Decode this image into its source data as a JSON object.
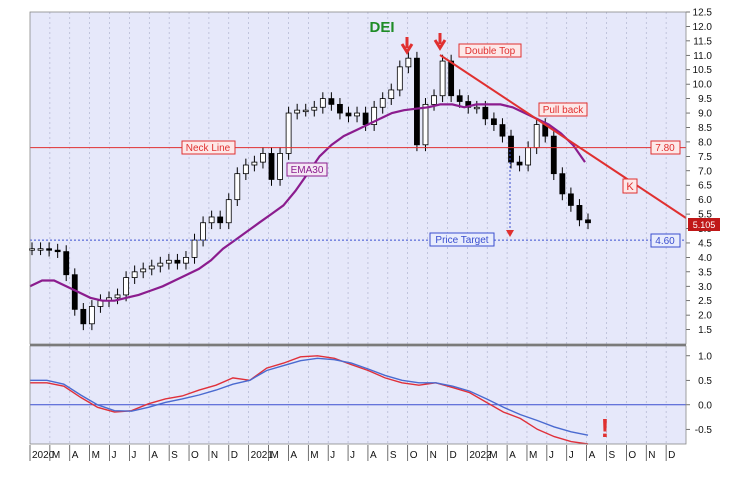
{
  "chart_data": [
    {
      "type": "candlestick",
      "title": "DEI",
      "y_ticks": [
        "12.5",
        "12.0",
        "11.5",
        "11.0",
        "10.5",
        "10.0",
        "9.5",
        "9.0",
        "8.5",
        "8.0",
        "7.5",
        "7.0",
        "6.5",
        "6.0",
        "5.5",
        "5.0",
        "4.5",
        "4.0",
        "3.5",
        "3.0",
        "2.5",
        "2.0",
        "1.5"
      ],
      "ylim": [
        1.0,
        12.5
      ],
      "x_labels": [
        "2020",
        "M",
        "A",
        "M",
        "J",
        "J",
        "A",
        "S",
        "O",
        "N",
        "D",
        "2021",
        "M",
        "A",
        "M",
        "J",
        "J",
        "A",
        "S",
        "O",
        "N",
        "D",
        "2022",
        "M",
        "A",
        "M",
        "J",
        "J",
        "A",
        "S",
        "O",
        "N",
        "D"
      ],
      "series_close": [
        {
          "name": "price",
          "values": [
            4.3,
            4.3,
            4.25,
            4.2,
            3.4,
            2.2,
            1.7,
            2.3,
            2.5,
            2.6,
            2.7,
            3.3,
            3.5,
            3.6,
            3.7,
            3.8,
            3.9,
            3.8,
            4.0,
            4.6,
            5.2,
            5.4,
            5.2,
            6.0,
            6.9,
            7.2,
            7.3,
            7.6,
            6.7,
            7.6,
            9.0,
            9.1,
            9.1,
            9.2,
            9.5,
            9.3,
            9.0,
            8.9,
            9.0,
            8.6,
            9.2,
            9.5,
            9.8,
            10.6,
            10.9,
            7.9,
            9.3,
            9.6,
            10.8,
            9.6,
            9.4,
            9.2,
            9.2,
            8.8,
            8.6,
            8.2,
            7.3,
            7.2,
            7.8,
            8.6,
            8.2,
            6.9,
            6.2,
            5.8,
            5.3,
            5.2
          ]
        }
      ],
      "ema30": {
        "name": "EMA30",
        "values": [
          3.0,
          3.2,
          3.2,
          3.0,
          2.8,
          2.6,
          2.5,
          2.5,
          2.6,
          2.7,
          2.85,
          3.0,
          3.2,
          3.4,
          3.6,
          3.9,
          4.3,
          4.6,
          4.9,
          5.2,
          5.5,
          5.8,
          6.3,
          6.9,
          7.5,
          7.9,
          8.2,
          8.4,
          8.6,
          8.8,
          9.0,
          9.1,
          9.15,
          9.2,
          9.3,
          9.3,
          9.2,
          9.3,
          9.3,
          9.3,
          9.2,
          9.0,
          8.8,
          8.6,
          8.3,
          7.9,
          7.3
        ]
      },
      "annotations": {
        "neck_line": {
          "label": "Neck Line",
          "value": 7.8,
          "value_label": "7.80"
        },
        "price_target": {
          "label": "Price Target",
          "value": 4.6,
          "value_label": "4.60"
        },
        "double_top": "Double Top",
        "pull_back": "Pull back",
        "trendline_label": "K",
        "last_price": "5.105"
      }
    },
    {
      "type": "line",
      "y_ticks": [
        "1.0",
        "0.5",
        "0.0",
        "-0.5"
      ],
      "ylim": [
        -0.8,
        1.2
      ],
      "series": [
        {
          "name": "red",
          "color": "#e0303a",
          "values": [
            0.45,
            0.45,
            0.38,
            0.15,
            -0.05,
            -0.15,
            -0.12,
            0.02,
            0.12,
            0.18,
            0.3,
            0.4,
            0.55,
            0.5,
            0.75,
            0.85,
            0.98,
            1.0,
            0.95,
            0.82,
            0.7,
            0.55,
            0.45,
            0.4,
            0.45,
            0.35,
            0.25,
            0.05,
            -0.15,
            -0.28,
            -0.5,
            -0.65,
            -0.75,
            -0.8
          ]
        },
        {
          "name": "blue",
          "color": "#4a6ad0",
          "values": [
            0.5,
            0.5,
            0.42,
            0.2,
            0.0,
            -0.12,
            -0.13,
            -0.05,
            0.05,
            0.12,
            0.2,
            0.3,
            0.42,
            0.5,
            0.7,
            0.8,
            0.9,
            0.95,
            0.92,
            0.85,
            0.73,
            0.6,
            0.5,
            0.45,
            0.45,
            0.38,
            0.28,
            0.12,
            -0.05,
            -0.2,
            -0.32,
            -0.45,
            -0.55,
            -0.62
          ]
        }
      ],
      "annotation": "!"
    }
  ],
  "colors": {
    "plot_bg": "#e6e8fa",
    "ema": "#8b1c8e",
    "annotation": "#e03030",
    "target": "#3a4ecf",
    "candle": "#000000",
    "title": "#1f8c27"
  }
}
